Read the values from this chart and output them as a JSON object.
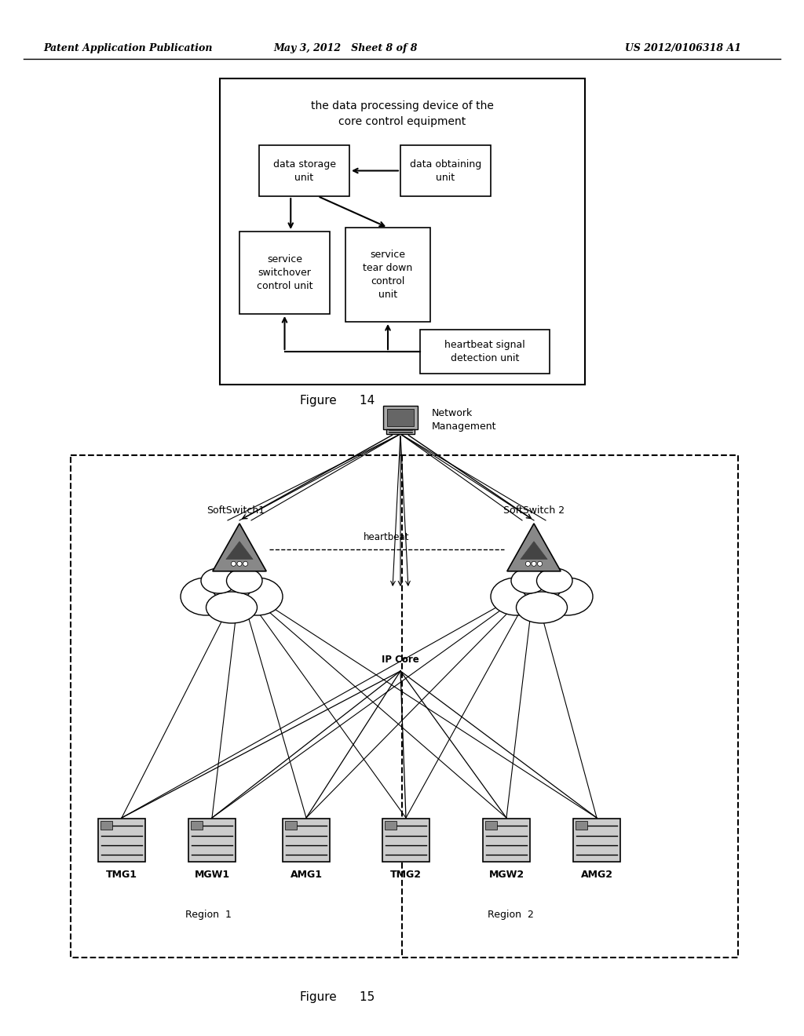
{
  "bg_color": "#ffffff",
  "header_left": "Patent Application Publication",
  "header_mid": "May 3, 2012   Sheet 8 of 8",
  "header_right": "US 2012/0106318 A1",
  "fig14_label": "Figure      14",
  "fig15_label": "Figure      15"
}
